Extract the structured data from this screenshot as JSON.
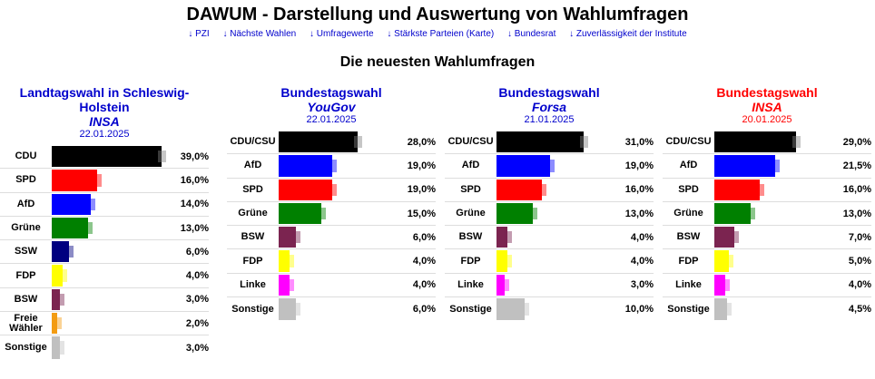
{
  "site": {
    "title": "DAWUM - Darstellung und Auswertung von Wahlumfragen",
    "nav": [
      "↓ PZI",
      "↓ Nächste Wahlen",
      "↓ Umfragewerte",
      "↓ Stärkste Parteien (Karte)",
      "↓ Bundesrat",
      "↓ Zuverlässigkeit der Institute"
    ]
  },
  "section_title": "Die neuesten Wahlumfragen",
  "colors": {
    "CDU": "#000000",
    "CDU/CSU": "#000000",
    "SPD": "#ff0000",
    "AfD": "#0000ff",
    "Grüne": "#008000",
    "SSW": "#000080",
    "FDP": "#ffff00",
    "BSW": "#7b2450",
    "Linke": "#ff00ff",
    "Freie Wähler": "#f39c12",
    "Sonstige": "#c0c0c0"
  },
  "polls": [
    {
      "election": "Landtagswahl in Schleswig-Holstein",
      "institute": "INSA",
      "date": "22.01.2025",
      "title_color": "#0000cc",
      "rows": [
        {
          "party": "CDU",
          "value": 39.0,
          "label": "39,0%"
        },
        {
          "party": "SPD",
          "value": 16.0,
          "label": "16,0%"
        },
        {
          "party": "AfD",
          "value": 14.0,
          "label": "14,0%"
        },
        {
          "party": "Grüne",
          "value": 13.0,
          "label": "13,0%"
        },
        {
          "party": "SSW",
          "value": 6.0,
          "label": "6,0%"
        },
        {
          "party": "FDP",
          "value": 4.0,
          "label": "4,0%"
        },
        {
          "party": "BSW",
          "value": 3.0,
          "label": "3,0%"
        },
        {
          "party": "Freie Wähler",
          "value": 2.0,
          "label": "2,0%"
        },
        {
          "party": "Sonstige",
          "value": 3.0,
          "label": "3,0%"
        }
      ]
    },
    {
      "election": "Bundestagswahl",
      "institute": "YouGov",
      "date": "22.01.2025",
      "title_color": "#0000cc",
      "rows": [
        {
          "party": "CDU/CSU",
          "value": 28.0,
          "label": "28,0%"
        },
        {
          "party": "AfD",
          "value": 19.0,
          "label": "19,0%"
        },
        {
          "party": "SPD",
          "value": 19.0,
          "label": "19,0%"
        },
        {
          "party": "Grüne",
          "value": 15.0,
          "label": "15,0%"
        },
        {
          "party": "BSW",
          "value": 6.0,
          "label": "6,0%"
        },
        {
          "party": "FDP",
          "value": 4.0,
          "label": "4,0%"
        },
        {
          "party": "Linke",
          "value": 4.0,
          "label": "4,0%"
        },
        {
          "party": "Sonstige",
          "value": 6.0,
          "label": "6,0%"
        }
      ]
    },
    {
      "election": "Bundestagswahl",
      "institute": "Forsa",
      "date": "21.01.2025",
      "title_color": "#0000cc",
      "rows": [
        {
          "party": "CDU/CSU",
          "value": 31.0,
          "label": "31,0%"
        },
        {
          "party": "AfD",
          "value": 19.0,
          "label": "19,0%"
        },
        {
          "party": "SPD",
          "value": 16.0,
          "label": "16,0%"
        },
        {
          "party": "Grüne",
          "value": 13.0,
          "label": "13,0%"
        },
        {
          "party": "BSW",
          "value": 4.0,
          "label": "4,0%"
        },
        {
          "party": "FDP",
          "value": 4.0,
          "label": "4,0%"
        },
        {
          "party": "Linke",
          "value": 3.0,
          "label": "3,0%"
        },
        {
          "party": "Sonstige",
          "value": 10.0,
          "label": "10,0%"
        }
      ]
    },
    {
      "election": "Bundestagswahl",
      "institute": "INSA",
      "date": "20.01.2025",
      "title_color": "#ff0000",
      "rows": [
        {
          "party": "CDU/CSU",
          "value": 29.0,
          "label": "29,0%"
        },
        {
          "party": "AfD",
          "value": 21.5,
          "label": "21,5%"
        },
        {
          "party": "SPD",
          "value": 16.0,
          "label": "16,0%"
        },
        {
          "party": "Grüne",
          "value": 13.0,
          "label": "13,0%"
        },
        {
          "party": "BSW",
          "value": 7.0,
          "label": "7,0%"
        },
        {
          "party": "FDP",
          "value": 5.0,
          "label": "5,0%"
        },
        {
          "party": "Linke",
          "value": 4.0,
          "label": "4,0%"
        },
        {
          "party": "Sonstige",
          "value": 4.5,
          "label": "4,5%"
        }
      ]
    }
  ]
}
